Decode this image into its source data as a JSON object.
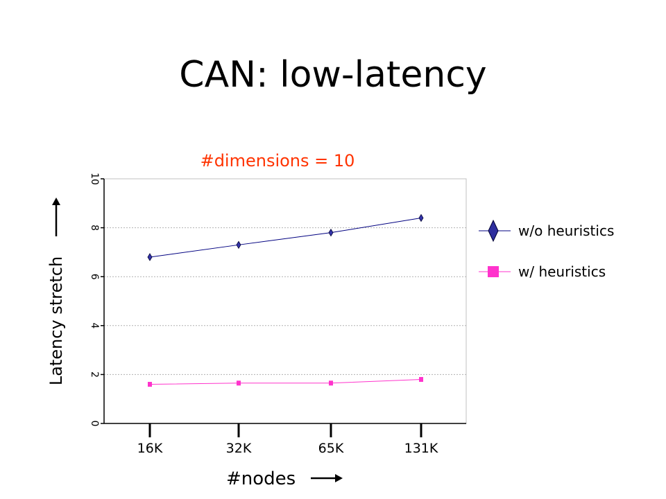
{
  "slide": {
    "title": "CAN: low-latency"
  },
  "chart_data": {
    "type": "line",
    "title": "#dimensions = 10",
    "xlabel": "#nodes",
    "ylabel": "Latency stretch",
    "categories": [
      "16K",
      "32K",
      "65K",
      "131K"
    ],
    "ylim": [
      0,
      10
    ],
    "yticks": [
      0,
      2,
      4,
      6,
      8,
      10
    ],
    "grid": true,
    "legend_position": "right",
    "series": [
      {
        "name": "w/o heuristics",
        "values": [
          6.8,
          7.3,
          7.8,
          8.4
        ],
        "color": "#000080",
        "marker_color": "#3333aa",
        "marker": "diamond"
      },
      {
        "name": "w/ heuristics",
        "values": [
          1.6,
          1.65,
          1.65,
          1.8
        ],
        "color": "#ff33cc",
        "marker_color": "#ff33cc",
        "marker": "square"
      }
    ]
  }
}
